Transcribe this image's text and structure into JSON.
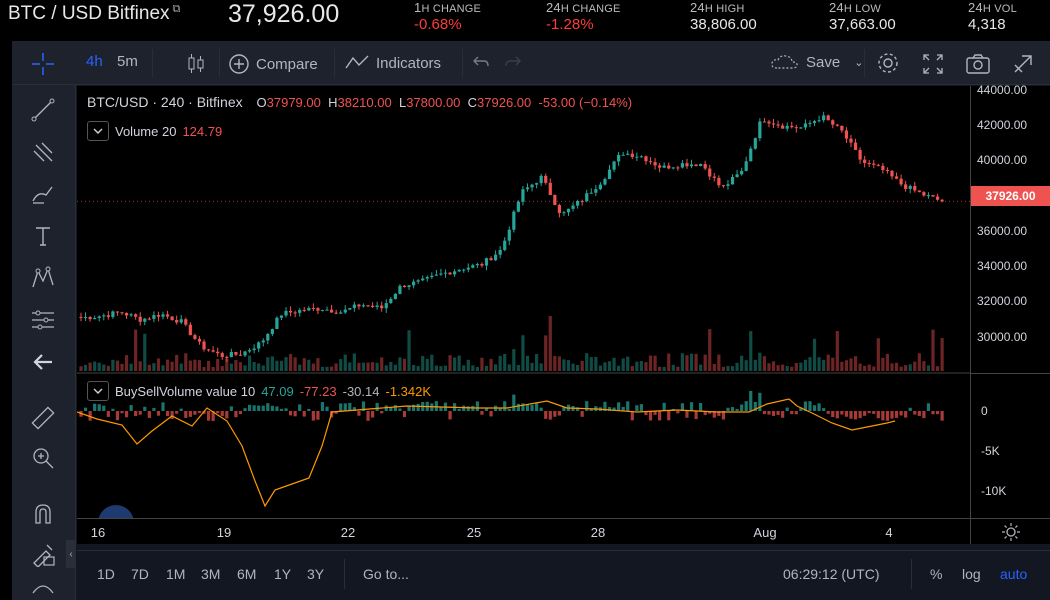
{
  "ticker": {
    "pair": "BTC / USD Bitfinex",
    "last": "37,926.00",
    "stats": [
      {
        "big": "1",
        "label": "H CHANGE",
        "value": "-0.68%",
        "neg": true
      },
      {
        "big": "24",
        "label": "H CHANGE",
        "value": "-1.28%",
        "neg": true
      },
      {
        "big": "24",
        "label": "H HIGH",
        "value": "38,806.00",
        "neg": false
      },
      {
        "big": "24",
        "label": "H LOW",
        "value": "37,663.00",
        "neg": false
      },
      {
        "big": "24",
        "label": "H VOL",
        "value": "4,318",
        "neg": false
      }
    ]
  },
  "toolbar": {
    "interval_4h": "4h",
    "interval_5m": "5m",
    "compare": "Compare",
    "indicators": "Indicators",
    "save": "Save"
  },
  "legend": {
    "symbol": "BTC/USD · 240 · Bitfinex",
    "o_label": "O",
    "o": "37979.00",
    "h_label": "H",
    "h": "38210.00",
    "l_label": "L",
    "l": "37800.00",
    "c_label": "C",
    "c": "37926.00",
    "change": "-53.00 (−0.14%)",
    "volume_name": "Volume 20",
    "volume_value": "124.79",
    "bsv_name": "BuySellVolume value 10",
    "bsv_v1": "47.09",
    "bsv_v2": "-77.23",
    "bsv_v3": "-30.14",
    "bsv_v4": "-1.342K"
  },
  "price_axis": [
    "44000.00",
    "42000.00",
    "40000.00",
    "37926.00",
    "36000.00",
    "34000.00",
    "32000.00",
    "30000.00"
  ],
  "current_price": "37926.00",
  "sub_axis": [
    "0",
    "-5K",
    "-10K"
  ],
  "x_axis": [
    "16",
    "19",
    "22",
    "25",
    "28",
    "Aug",
    "4"
  ],
  "bottom": {
    "ranges": [
      "1D",
      "7D",
      "1M",
      "3M",
      "6M",
      "1Y",
      "3Y"
    ],
    "goto": "Go to...",
    "time": "06:29:12 (UTC)",
    "pct": "%",
    "log": "log",
    "auto": "auto"
  },
  "colors": {
    "up": "#26a69a",
    "down": "#ef5350",
    "accent": "#2962ff",
    "orange": "#ff9800"
  },
  "chart_data": {
    "type": "candlestick",
    "title": "BTC/USD · 240 · Bitfinex",
    "ylim": [
      29000,
      44000
    ],
    "x": [
      "16",
      "19",
      "22",
      "25",
      "28",
      "Aug",
      "4"
    ],
    "close_path": [
      31800,
      31900,
      32100,
      31700,
      32000,
      31600,
      30300,
      29800,
      29900,
      30500,
      32000,
      32200,
      32300,
      32100,
      32500,
      32300,
      33500,
      33700,
      34100,
      34400,
      34600,
      35400,
      38400,
      39200,
      37200,
      38000,
      39000,
      40500,
      40300,
      39700,
      39900,
      39900,
      38600,
      39500,
      42300,
      41900,
      41800,
      42400,
      41600,
      40000,
      39600,
      38800,
      38300,
      37926
    ]
  }
}
